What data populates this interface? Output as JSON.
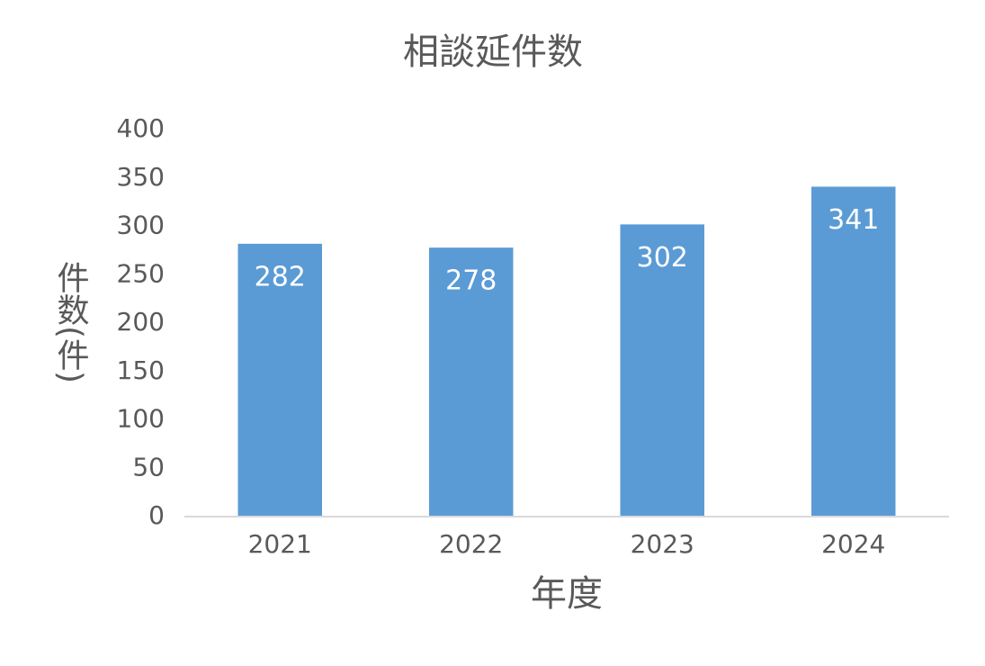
{
  "chart_data": {
    "type": "bar",
    "title": "相談延件数",
    "x_label": "年度",
    "y_label": "件数(件)",
    "categories": [
      "2021",
      "2022",
      "2023",
      "2024"
    ],
    "values": [
      282,
      278,
      302,
      341
    ],
    "color": "#5b9bd5",
    "ylim": [
      0,
      400
    ],
    "yticks": [
      0,
      50,
      100,
      150,
      200,
      250,
      300,
      350,
      400
    ],
    "grid": false,
    "data_labels": true
  }
}
